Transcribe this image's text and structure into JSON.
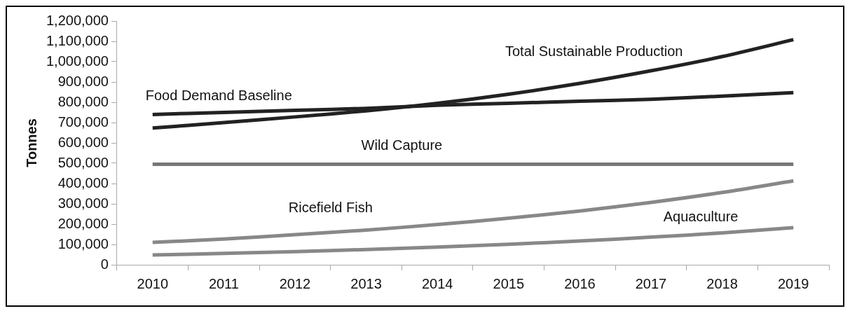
{
  "chart_data": {
    "type": "line",
    "ylabel": "Tonnes",
    "categories": [
      "2010",
      "2011",
      "2012",
      "2013",
      "2014",
      "2015",
      "2016",
      "2017",
      "2018",
      "2019"
    ],
    "ylim": [
      0,
      1200000
    ],
    "yticks": [
      0,
      {
        "value": 100000,
        "label": "100,000"
      },
      {
        "value": 200000,
        "label": "200,000"
      },
      {
        "value": 300000,
        "label": "300,000"
      },
      {
        "value": 400000,
        "label": "400,000"
      },
      {
        "value": 500000,
        "label": "500,000"
      },
      {
        "value": 600000,
        "label": "600,000"
      },
      {
        "value": 700000,
        "label": "700,000"
      },
      {
        "value": 800000,
        "label": "800,000"
      },
      {
        "value": 900000,
        "label": "900,000"
      },
      {
        "value": 1000000,
        "label": "1,000,000"
      },
      {
        "value": 1100000,
        "label": "1,100,000"
      },
      {
        "value": 1200000,
        "label": "1,200,000"
      }
    ],
    "grid": false,
    "legend": false,
    "marker": "none",
    "line_style": "solid",
    "series": [
      {
        "name": "Total Sustainable Production",
        "color": "#222222",
        "values": [
          673000,
          700000,
          728000,
          758000,
          795000,
          840000,
          893000,
          955000,
          1025000,
          1108000
        ]
      },
      {
        "name": "Food Demand Baseline",
        "color": "#222222",
        "values": [
          740000,
          750000,
          760000,
          770000,
          785000,
          795000,
          805000,
          815000,
          830000,
          847000
        ]
      },
      {
        "name": "Wild Capture",
        "color": "#777777",
        "values": [
          495000,
          495000,
          495000,
          495000,
          495000,
          495000,
          495000,
          495000,
          495000,
          495000
        ]
      },
      {
        "name": "Ricefield Fish",
        "color": "#888888",
        "values": [
          110000,
          127000,
          148000,
          171000,
          198000,
          229000,
          265000,
          307000,
          356000,
          413000
        ]
      },
      {
        "name": "Aquaculture",
        "color": "#888888",
        "values": [
          48000,
          56000,
          65000,
          75000,
          87000,
          101000,
          117000,
          136000,
          157000,
          183000
        ]
      }
    ]
  }
}
